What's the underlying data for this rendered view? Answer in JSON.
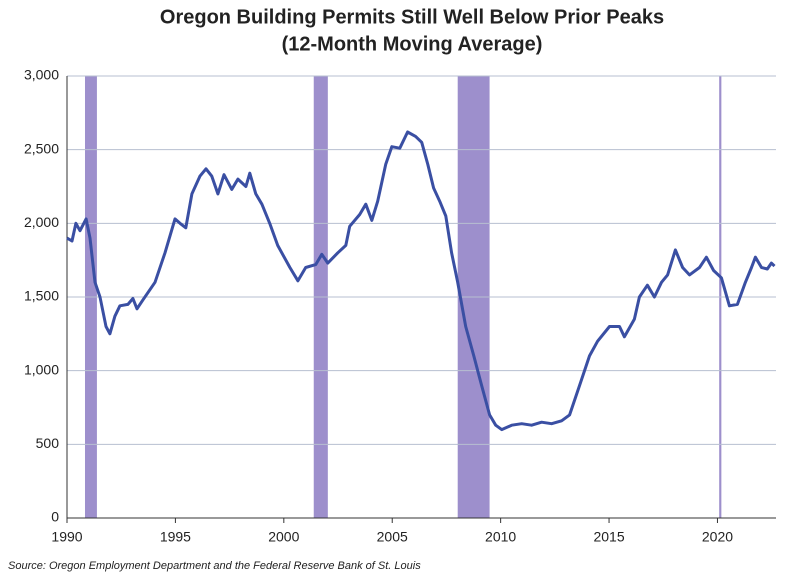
{
  "chart_data": {
    "type": "line",
    "title": "Oregon Building Permits Still Well Below Prior Peaks",
    "subtitle": "(12-Month Moving Average)",
    "source": "Source: Oregon Employment Department and the Federal Reserve Bank of St. Louis",
    "x": [
      1990.0,
      1990.23,
      1990.41,
      1990.6,
      1990.88,
      1991.06,
      1991.29,
      1991.52,
      1991.8,
      1991.98,
      1992.21,
      1992.44,
      1992.81,
      1993.04,
      1993.23,
      1993.5,
      1994.06,
      1994.52,
      1994.98,
      1995.21,
      1995.48,
      1995.76,
      1996.13,
      1996.41,
      1996.68,
      1996.96,
      1997.24,
      1997.6,
      1997.88,
      1998.25,
      1998.43,
      1998.71,
      1998.99,
      1999.35,
      1999.72,
      2000.28,
      2000.65,
      2001.01,
      2001.47,
      2001.75,
      2002.03,
      2002.49,
      2002.86,
      2003.04,
      2003.5,
      2003.78,
      2004.06,
      2004.33,
      2004.7,
      2004.98,
      2005.35,
      2005.71,
      2006.08,
      2006.36,
      2006.64,
      2006.91,
      2007.19,
      2007.47,
      2007.74,
      2008.02,
      2008.39,
      2008.76,
      2009.12,
      2009.49,
      2009.77,
      2010.05,
      2010.51,
      2010.97,
      2011.43,
      2011.89,
      2012.35,
      2012.81,
      2013.18,
      2013.64,
      2014.1,
      2014.47,
      2015.02,
      2015.48,
      2015.71,
      2016.17,
      2016.4,
      2016.77,
      2017.09,
      2017.42,
      2017.7,
      2018.06,
      2018.39,
      2018.71,
      2019.17,
      2019.49,
      2019.82,
      2020.18,
      2020.55,
      2020.92,
      2021.29,
      2021.57,
      2021.75,
      2022.03,
      2022.3,
      2022.49,
      2022.63
    ],
    "series": [
      {
        "name": "Building Permits",
        "color": "#3a4fa3",
        "values": [
          1900,
          1880,
          2000,
          1950,
          2030,
          1900,
          1600,
          1500,
          1300,
          1250,
          1370,
          1440,
          1450,
          1490,
          1420,
          1480,
          1600,
          1800,
          2030,
          2000,
          1970,
          2200,
          2320,
          2370,
          2320,
          2200,
          2330,
          2230,
          2300,
          2250,
          2340,
          2200,
          2130,
          2000,
          1850,
          1700,
          1610,
          1700,
          1720,
          1790,
          1730,
          1800,
          1850,
          1980,
          2060,
          2130,
          2020,
          2150,
          2400,
          2520,
          2510,
          2620,
          2590,
          2550,
          2400,
          2240,
          2150,
          2050,
          1800,
          1600,
          1300,
          1100,
          900,
          700,
          630,
          600,
          630,
          640,
          630,
          650,
          640,
          660,
          700,
          900,
          1100,
          1200,
          1300,
          1300,
          1230,
          1350,
          1500,
          1580,
          1500,
          1600,
          1650,
          1820,
          1700,
          1650,
          1700,
          1770,
          1680,
          1630,
          1440,
          1450,
          1600,
          1700,
          1770,
          1700,
          1690,
          1730,
          1710
        ]
      }
    ],
    "shaded_periods": [
      [
        1990.83,
        1991.38
      ],
      [
        2001.38,
        2002.03
      ],
      [
        2008.02,
        2009.49
      ],
      [
        2020.08,
        2020.18
      ]
    ],
    "shade_color": "#9d8fcc",
    "xlim": [
      1990,
      2022.7
    ],
    "xticks": [
      1990,
      1995,
      2000,
      2005,
      2010,
      2015,
      2020
    ],
    "ylim": [
      0,
      3000
    ],
    "yticks": [
      0,
      500,
      {
        "value": 1000,
        "label": "1,000"
      },
      {
        "value": 1500,
        "label": "1,500"
      },
      {
        "value": 2000,
        "label": "2,000"
      },
      {
        "value": 2500,
        "label": "2,500"
      },
      {
        "value": 3000,
        "label": "3,000"
      }
    ],
    "grid": true
  }
}
